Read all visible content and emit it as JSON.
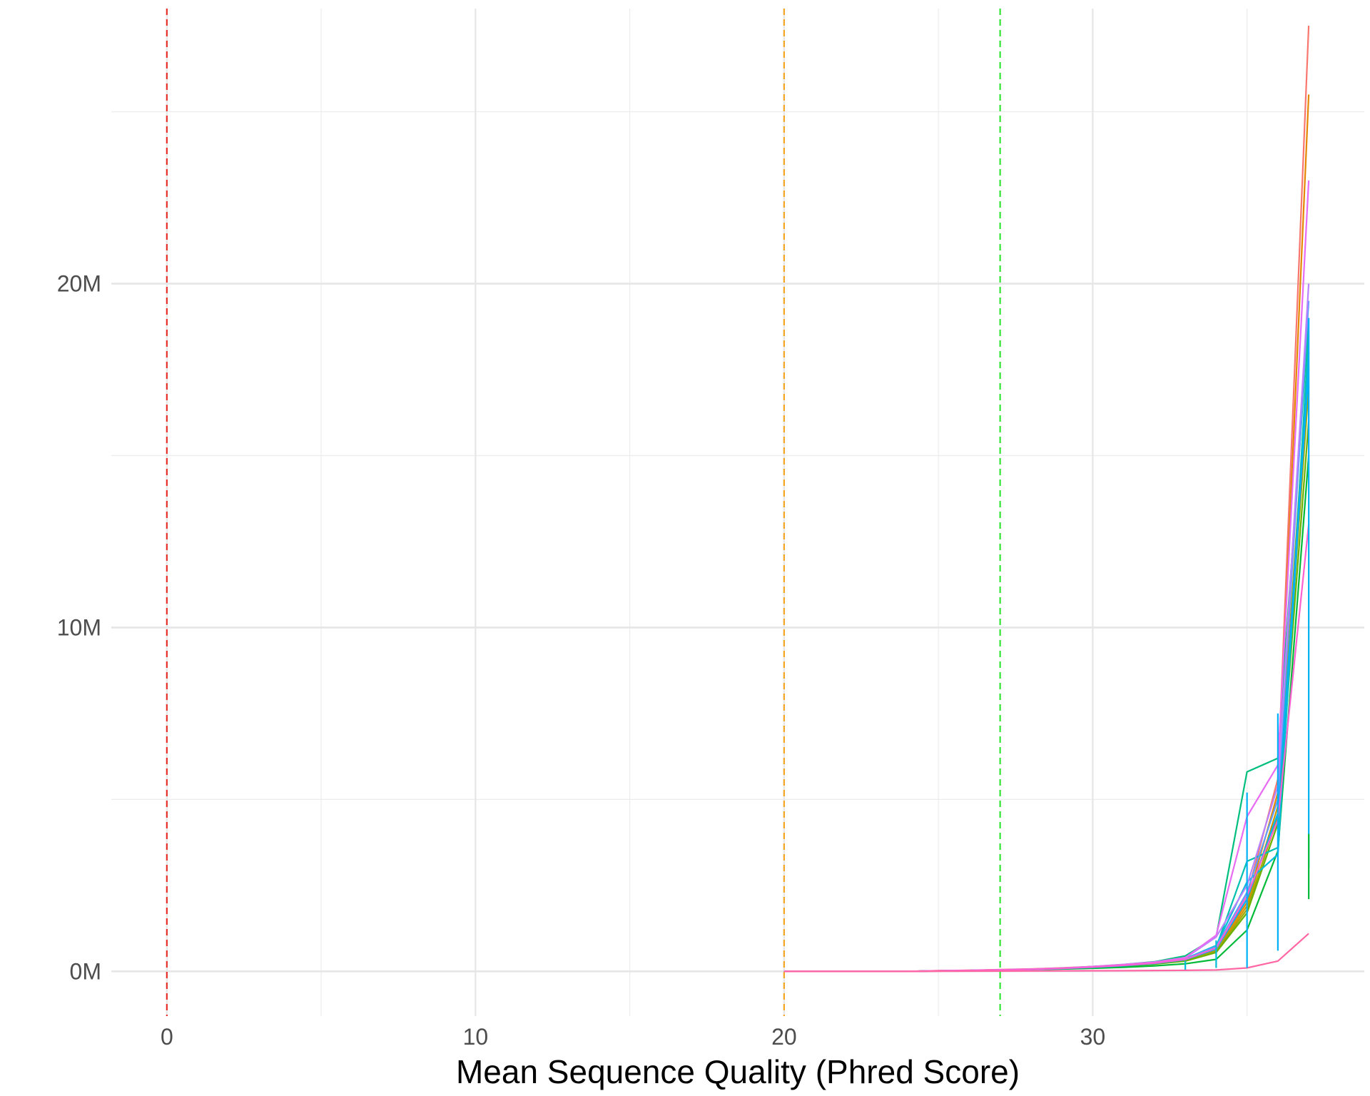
{
  "chart_data": {
    "type": "line",
    "title": "",
    "xlabel": "Mean Sequence Quality (Phred Score)",
    "ylabel": "",
    "xlim": [
      -1.8,
      38.8
    ],
    "ylim": [
      -1300000,
      28000000
    ],
    "x_ticks": [
      0,
      10,
      20,
      30
    ],
    "x_tick_labels": [
      "0",
      "10",
      "20",
      "30"
    ],
    "y_ticks": [
      0,
      10000000,
      20000000
    ],
    "y_tick_labels": [
      "0M",
      "10M",
      "20M"
    ],
    "x_minor_ticks": [
      5,
      15,
      25,
      35
    ],
    "y_minor_ticks": [
      5000000,
      15000000,
      25000000
    ],
    "grid": true,
    "legend": "none",
    "reference_lines": [
      {
        "x": 0,
        "color": "#e8312b",
        "style": "dashed"
      },
      {
        "x": 20,
        "color": "#f5a623",
        "style": "dashed"
      },
      {
        "x": 27,
        "color": "#33e633",
        "style": "dashed"
      }
    ],
    "series": [
      {
        "color": "#F8766D",
        "x": [
          20,
          21,
          22,
          23,
          24,
          25,
          26,
          27,
          28,
          29,
          30,
          31,
          32,
          33,
          34,
          35,
          36,
          37
        ],
        "y": [
          0,
          0,
          0,
          0,
          0,
          20000,
          30000,
          50000,
          70000,
          100000,
          140000,
          190000,
          260000,
          380000,
          700000,
          2200000,
          5600000,
          27500000
        ]
      },
      {
        "color": "#E58700",
        "x": [
          20,
          21,
          22,
          23,
          24,
          25,
          26,
          27,
          28,
          29,
          30,
          31,
          32,
          33,
          34,
          35,
          36,
          37
        ],
        "y": [
          0,
          0,
          0,
          0,
          0,
          18000,
          28000,
          45000,
          65000,
          95000,
          130000,
          180000,
          240000,
          350000,
          650000,
          2000000,
          5200000,
          25500000
        ]
      },
      {
        "color": "#C99800",
        "x": [
          20,
          21,
          22,
          23,
          24,
          25,
          26,
          27,
          28,
          29,
          30,
          31,
          32,
          33,
          34,
          35,
          36,
          37
        ],
        "y": [
          0,
          0,
          0,
          0,
          0,
          15000,
          25000,
          40000,
          60000,
          90000,
          120000,
          170000,
          230000,
          330000,
          600000,
          1900000,
          4800000,
          18000000
        ]
      },
      {
        "color": "#A3A500",
        "x": [
          20,
          21,
          22,
          23,
          24,
          25,
          26,
          27,
          28,
          29,
          30,
          31,
          32,
          33,
          34,
          35,
          36,
          37
        ],
        "y": [
          0,
          0,
          0,
          0,
          0,
          15000,
          25000,
          40000,
          60000,
          85000,
          115000,
          160000,
          220000,
          320000,
          580000,
          1800000,
          4500000,
          17000000
        ]
      },
      {
        "color": "#6BB100",
        "x": [
          20,
          21,
          22,
          23,
          24,
          25,
          26,
          27,
          28,
          29,
          30,
          31,
          32,
          33,
          34,
          35,
          36,
          37
        ],
        "y": [
          0,
          0,
          0,
          0,
          0,
          12000,
          22000,
          35000,
          55000,
          80000,
          110000,
          150000,
          210000,
          300000,
          550000,
          1700000,
          4300000,
          16000000
        ]
      },
      {
        "color": "#00BA38",
        "x": [
          20,
          21,
          22,
          23,
          24,
          25,
          26,
          27,
          28,
          29,
          30,
          31,
          32,
          33,
          34,
          35,
          36,
          37
        ],
        "y": [
          0,
          0,
          0,
          0,
          0,
          10000,
          20000,
          30000,
          50000,
          70000,
          90000,
          120000,
          160000,
          220000,
          350000,
          1200000,
          3500000,
          15000000
        ]
      },
      {
        "color": "#00BF7D",
        "x": [
          20,
          21,
          22,
          23,
          24,
          25,
          26,
          27,
          28,
          29,
          30,
          31,
          32,
          33,
          34,
          35,
          36,
          37
        ],
        "y": [
          0,
          0,
          0,
          0,
          0,
          15000,
          25000,
          40000,
          60000,
          90000,
          140000,
          200000,
          280000,
          450000,
          1000000,
          5800000,
          6200000,
          19000000
        ]
      },
      {
        "color": "#00C0AF",
        "x": [
          20,
          21,
          22,
          23,
          24,
          25,
          26,
          27,
          28,
          29,
          30,
          31,
          32,
          33,
          34,
          35,
          36,
          37
        ],
        "y": [
          0,
          0,
          0,
          0,
          0,
          14000,
          24000,
          38000,
          58000,
          85000,
          125000,
          175000,
          245000,
          360000,
          700000,
          3200000,
          3600000,
          18500000
        ]
      },
      {
        "color": "#00BCD8",
        "x": [
          20,
          21,
          22,
          23,
          24,
          25,
          26,
          27,
          28,
          29,
          30,
          31,
          32,
          33,
          34,
          35,
          36,
          37
        ],
        "y": [
          0,
          0,
          0,
          0,
          0,
          15000,
          25000,
          40000,
          60000,
          90000,
          130000,
          180000,
          250000,
          370000,
          750000,
          2600000,
          3400000,
          18000000
        ]
      },
      {
        "color": "#00B0F6",
        "x": [
          20,
          21,
          22,
          23,
          24,
          25,
          26,
          27,
          28,
          29,
          30,
          31,
          32,
          33,
          34,
          35,
          36,
          37
        ],
        "y": [
          0,
          0,
          0,
          0,
          0,
          14000,
          24000,
          38000,
          56000,
          82000,
          118000,
          165000,
          230000,
          340000,
          650000,
          2100000,
          4600000,
          17500000
        ]
      },
      {
        "color": "#619CFF",
        "x": [
          20,
          21,
          22,
          23,
          24,
          25,
          26,
          27,
          28,
          29,
          30,
          31,
          32,
          33,
          34,
          35,
          36,
          37
        ],
        "y": [
          0,
          0,
          0,
          0,
          0,
          15000,
          25000,
          40000,
          60000,
          90000,
          130000,
          180000,
          250000,
          370000,
          720000,
          2300000,
          5000000,
          19500000
        ]
      },
      {
        "color": "#B983FF",
        "x": [
          20,
          21,
          22,
          23,
          24,
          25,
          26,
          27,
          28,
          29,
          30,
          31,
          32,
          33,
          34,
          35,
          36,
          37
        ],
        "y": [
          0,
          0,
          0,
          0,
          0,
          16000,
          26000,
          42000,
          62000,
          92000,
          135000,
          190000,
          260000,
          390000,
          1000000,
          2500000,
          5400000,
          20000000
        ]
      },
      {
        "color": "#E76BF3",
        "x": [
          20,
          21,
          22,
          23,
          24,
          25,
          26,
          27,
          28,
          29,
          30,
          31,
          32,
          33,
          34,
          35,
          36,
          37
        ],
        "y": [
          0,
          0,
          0,
          0,
          0,
          17000,
          28000,
          45000,
          65000,
          95000,
          140000,
          200000,
          270000,
          400000,
          1050000,
          4500000,
          6000000,
          23000000
        ]
      },
      {
        "color": "#FD61D1",
        "x": [
          20,
          21,
          22,
          23,
          24,
          25,
          26,
          27,
          28,
          29,
          30,
          31,
          32,
          33,
          34,
          35,
          36,
          37
        ],
        "y": [
          0,
          0,
          0,
          0,
          0,
          15000,
          25000,
          40000,
          60000,
          88000,
          125000,
          175000,
          240000,
          350000,
          680000,
          2200000,
          4400000,
          13000000
        ]
      },
      {
        "color": "#FF67A4",
        "x": [
          20,
          21,
          22,
          23,
          24,
          25,
          26,
          27,
          28,
          29,
          30,
          31,
          32,
          33,
          34,
          35,
          36,
          37
        ],
        "y": [
          0,
          0,
          0,
          0,
          0,
          5000,
          8000,
          10000,
          12000,
          15000,
          18000,
          20000,
          25000,
          30000,
          40000,
          100000,
          300000,
          1100000
        ]
      }
    ],
    "vertical_segments": [
      {
        "color": "#00B0F6",
        "x": 35,
        "y0": 100000,
        "y1": 5200000
      },
      {
        "color": "#00B0F6",
        "x": 36,
        "y0": 600000,
        "y1": 7500000
      },
      {
        "color": "#00B0F6",
        "x": 37,
        "y0": 3000000,
        "y1": 19000000
      },
      {
        "color": "#00BA38",
        "x": 37,
        "y0": 2100000,
        "y1": 4000000
      },
      {
        "color": "#00BCD8",
        "x": 34,
        "y0": 100000,
        "y1": 900000
      },
      {
        "color": "#00BCD8",
        "x": 33,
        "y0": 50000,
        "y1": 300000
      }
    ]
  }
}
